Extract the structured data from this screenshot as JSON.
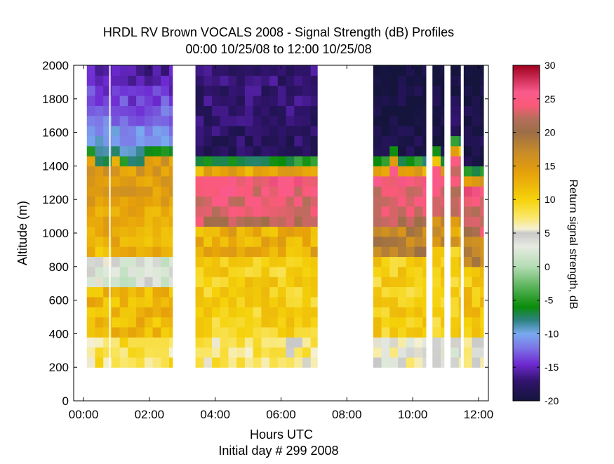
{
  "chart_data": {
    "type": "heatmap",
    "title": "HRDL RV Brown VOCALS 2008 - Signal Strength (dB) Profiles",
    "subtitle": "00:00 10/25/08 to 12:00 10/25/08",
    "xlabel": "Hours UTC",
    "xlabel2": "Initial day # 299  2008",
    "ylabel": "Altitude (m)",
    "colorbar_label": "Return signal strength, dB",
    "xlim": [
      -0.3,
      12.3
    ],
    "ylim": [
      0,
      2000
    ],
    "x_ticks": [
      0,
      2,
      4,
      6,
      8,
      10,
      12
    ],
    "x_tick_labels": [
      "00:00",
      "02:00",
      "04:00",
      "06:00",
      "08:00",
      "10:00",
      "12:00"
    ],
    "y_ticks": [
      0,
      200,
      400,
      600,
      800,
      1000,
      1200,
      1400,
      1600,
      1800,
      2000
    ],
    "y_tick_labels": [
      "0",
      "200",
      "400",
      "600",
      "800",
      "1000",
      "1200",
      "1400",
      "1600",
      "1800",
      "2000"
    ],
    "clim": [
      -20,
      30
    ],
    "cbar_ticks": [
      -20,
      -15,
      -10,
      -5,
      0,
      5,
      10,
      15,
      20,
      25,
      30
    ],
    "cbar_tick_labels": [
      "-20",
      "-15",
      "-10",
      "-5",
      "0",
      "5",
      "10",
      "15",
      "20",
      "25",
      "30"
    ],
    "colormap": [
      [
        -20,
        "#14143c"
      ],
      [
        -17,
        "#32146e"
      ],
      [
        -14.5,
        "#6e2ad2"
      ],
      [
        -12,
        "#7d78e6"
      ],
      [
        -10,
        "#78aaf0"
      ],
      [
        -8,
        "#2d8282"
      ],
      [
        -6,
        "#0a8c0a"
      ],
      [
        -3,
        "#5ab45a"
      ],
      [
        0,
        "#b4dcb4"
      ],
      [
        3,
        "#e6ebe1"
      ],
      [
        5,
        "#c8c8c8"
      ],
      [
        5.6,
        "#f5f0d2"
      ],
      [
        7.5,
        "#fae664"
      ],
      [
        10,
        "#f5d20a"
      ],
      [
        14,
        "#e6a00a"
      ],
      [
        17,
        "#c88c28"
      ],
      [
        20,
        "#9c6e46"
      ],
      [
        22,
        "#b46e5a"
      ],
      [
        24,
        "#fa5a78"
      ],
      [
        26,
        "#fa5a8c"
      ],
      [
        30,
        "#a0001e"
      ]
    ],
    "altitude_min": 200,
    "bin_height_m": 60,
    "scan_interval_h": 0.25,
    "periods": [
      {
        "start": 0.1,
        "end": 2.7
      },
      {
        "start": 3.4,
        "end": 7.1
      },
      {
        "start": 8.8,
        "end": 10.4
      },
      {
        "start": 10.6,
        "end": 10.95
      },
      {
        "start": 11.15,
        "end": 11.45
      },
      {
        "start": 11.55,
        "end": 12.15
      }
    ],
    "data_gap_lines_hours": [
      0.8
    ],
    "profile_model": {
      "note": "typical layer values (dB) estimated by time segment",
      "segments": [
        {
          "from": 0.1,
          "to": 2.7,
          "top": 1470,
          "surface": 8,
          "mid": 12,
          "inversion": 15,
          "base": 850,
          "cloud": 3,
          "above_low": -9,
          "above_high": -16
        },
        {
          "from": 3.4,
          "to": 7.1,
          "top": 1430,
          "surface": 7,
          "mid": 10,
          "inversion": 25,
          "base": 1050,
          "cloud": 13,
          "above_low": -18,
          "above_high": -17
        },
        {
          "from": 8.8,
          "to": 10.4,
          "top": 1440,
          "surface": 5,
          "mid": 10,
          "inversion": 25,
          "base": 1060,
          "cloud": 18,
          "above_low": -19,
          "above_high": -20
        },
        {
          "from": 10.6,
          "to": 10.95,
          "top": 1450,
          "surface": 5,
          "mid": 10,
          "inversion": 25,
          "base": 1080,
          "cloud": 16,
          "above_low": -19,
          "above_high": -20
        },
        {
          "from": 11.15,
          "to": 11.45,
          "top": 1560,
          "surface": 4,
          "mid": 10,
          "inversion": 25,
          "base": 1080,
          "cloud": 14,
          "above_low": -18,
          "above_high": -20
        },
        {
          "from": 11.55,
          "to": 12.15,
          "top": 1360,
          "surface": 5,
          "mid": 11,
          "inversion": 25,
          "base": 1000,
          "cloud": 17,
          "above_low": -19,
          "above_high": -20
        }
      ]
    }
  }
}
